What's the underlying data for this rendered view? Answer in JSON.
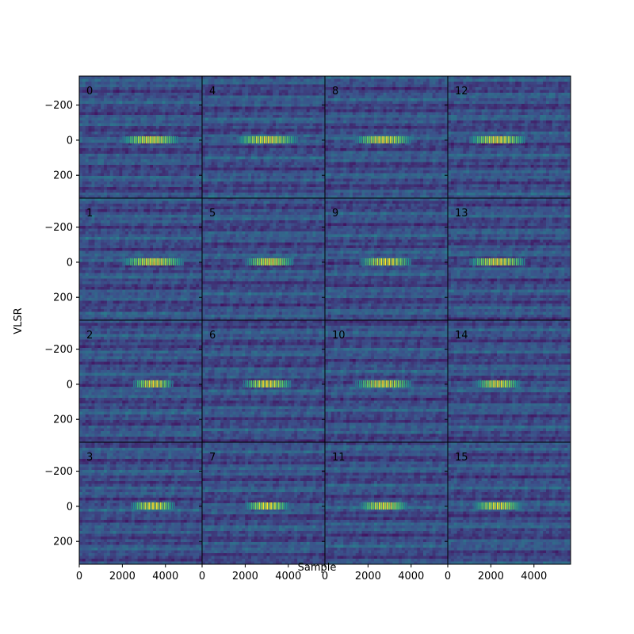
{
  "chart_data": {
    "type": "heatmap",
    "title": "",
    "xlabel": "Sample",
    "ylabel": "VLSR",
    "layout": {
      "rows": 4,
      "cols": 4,
      "panel_order": "column-major"
    },
    "panels": [
      "0",
      "1",
      "2",
      "3",
      "4",
      "5",
      "6",
      "7",
      "8",
      "9",
      "10",
      "11",
      "12",
      "13",
      "14",
      "15"
    ],
    "xlim": [
      0,
      5700
    ],
    "ylim": [
      330,
      -365
    ],
    "x_ticks": [
      0,
      2000,
      4000
    ],
    "x_tick_labels": [
      "0",
      "2000",
      "4000"
    ],
    "y_ticks": [
      -200,
      0,
      200
    ],
    "y_tick_labels": [
      "−200",
      "0",
      "200"
    ],
    "line_center_vlsr": 0,
    "emission_center_sample": [
      3300,
      3400,
      3400,
      3400,
      3000,
      3100,
      3000,
      3000,
      2700,
      2800,
      2700,
      2700,
      2300,
      2300,
      2300,
      2300
    ],
    "emission_halfwidth_sample": [
      1300,
      1400,
      900,
      1000,
      1400,
      1100,
      1100,
      1000,
      1300,
      1200,
      1300,
      1100,
      1300,
      1300,
      1000,
      1100
    ],
    "colormap": "viridis",
    "colors": {
      "background": "#3b528b",
      "peak": "#fde725",
      "frame": "#000000"
    },
    "grid": false,
    "legend": "none"
  }
}
